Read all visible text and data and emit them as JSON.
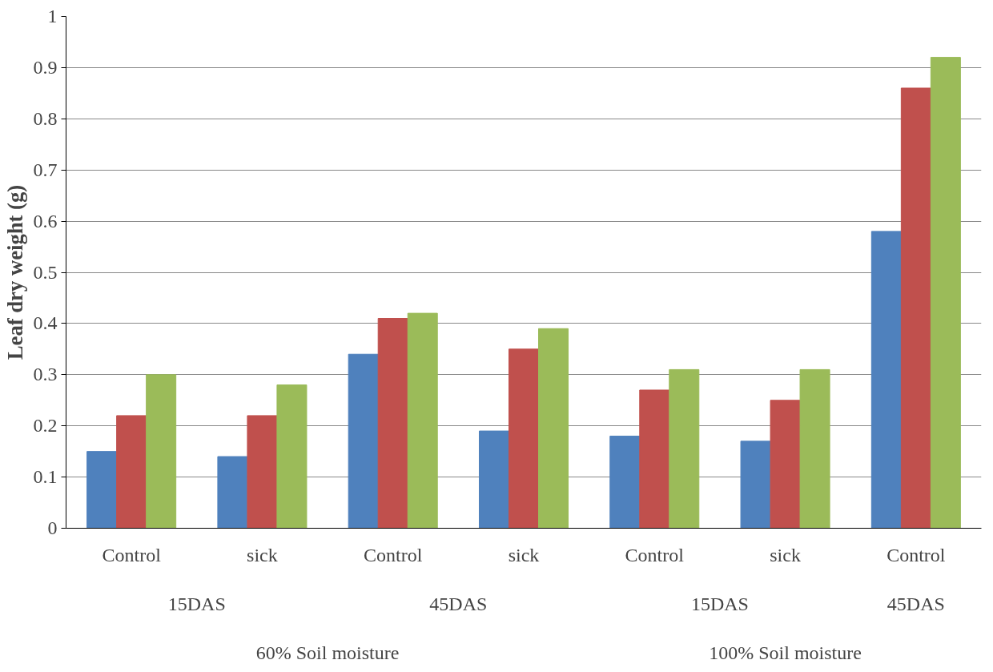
{
  "chart_data": {
    "type": "bar",
    "ylabel": "Leaf dry weight (g)",
    "categories": [
      "Control",
      "sick",
      "Control",
      "sick",
      "Control",
      "sick",
      "Control"
    ],
    "series": [
      {
        "color": "#4f81bd",
        "values": [
          0.15,
          0.14,
          0.34,
          0.19,
          0.18,
          0.17,
          0.58
        ]
      },
      {
        "color": "#c0504d",
        "values": [
          0.22,
          0.22,
          0.41,
          0.35,
          0.27,
          0.25,
          0.86
        ]
      },
      {
        "color": "#9bbb59",
        "values": [
          0.3,
          0.28,
          0.42,
          0.39,
          0.31,
          0.31,
          0.92
        ]
      }
    ],
    "annotations": [
      "15DAS",
      "45DAS",
      "15DAS",
      "45DAS",
      "60% Soil moisture",
      "100% Soil moisture"
    ],
    "ylim": [
      0,
      1
    ],
    "yticks": [
      0,
      0.1,
      0.2,
      0.3,
      0.4,
      0.5,
      0.6,
      0.7,
      0.8,
      0.9,
      1
    ],
    "grid": "y"
  }
}
